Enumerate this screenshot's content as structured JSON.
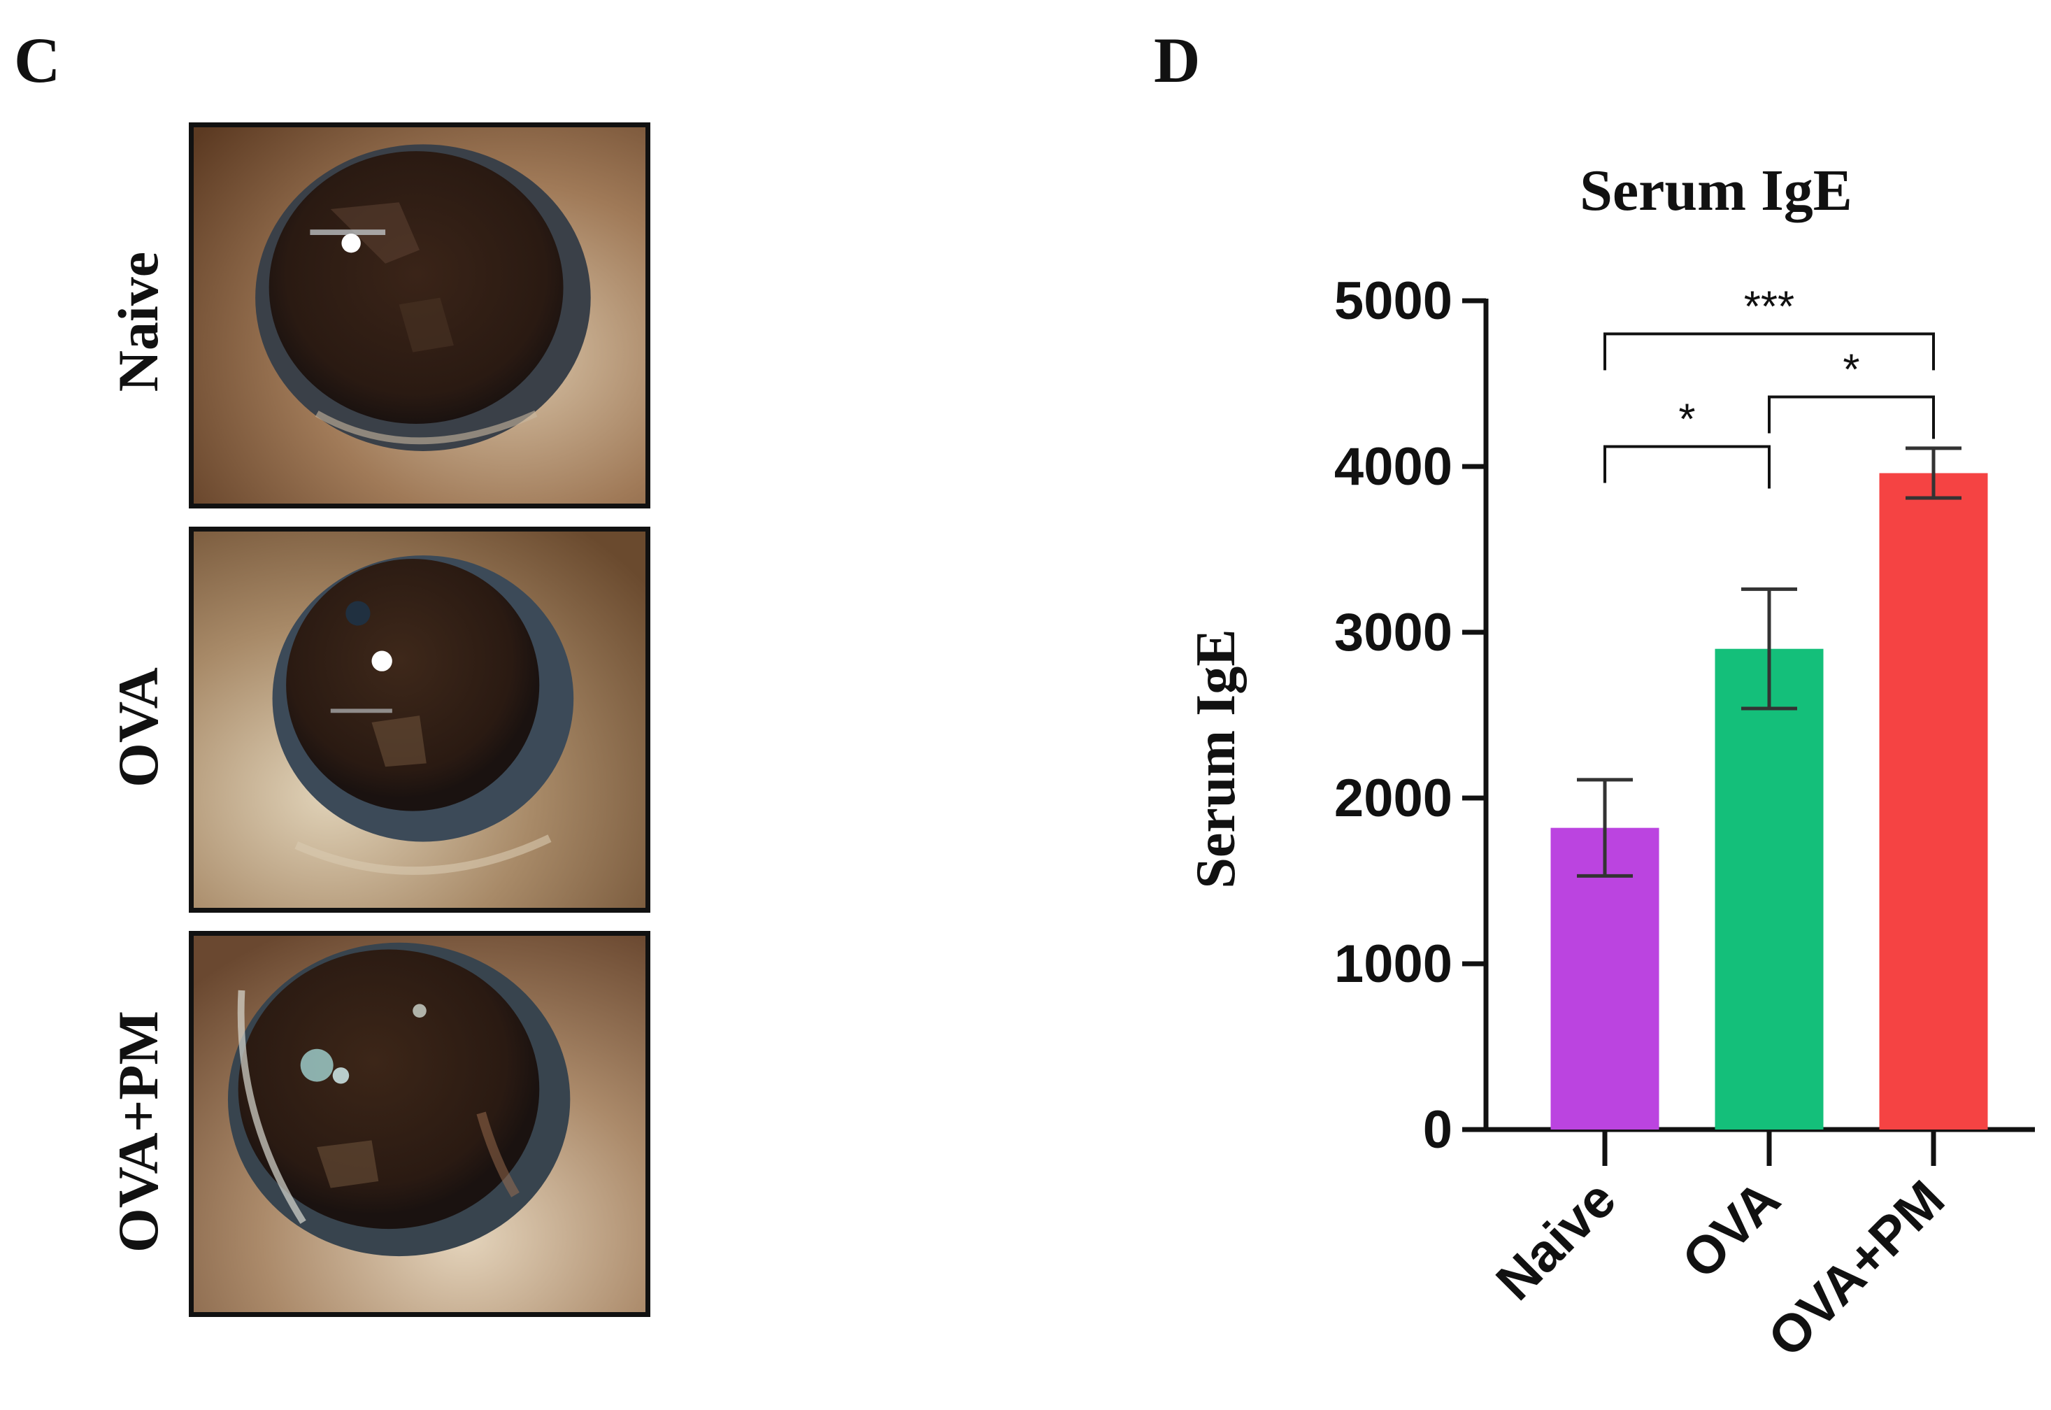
{
  "panel_c": {
    "letter": "C",
    "rows": [
      {
        "label": "Naive"
      },
      {
        "label": "OVA"
      },
      {
        "label": "OVA+PM"
      }
    ]
  },
  "panel_d": {
    "letter": "D"
  },
  "chart_data": {
    "type": "bar",
    "title": "Serum IgE",
    "ylabel": "Serum IgE",
    "xlabel": "",
    "ylim": [
      0,
      5000
    ],
    "yticks": [
      0,
      1000,
      2000,
      3000,
      4000,
      5000
    ],
    "categories": [
      "Naive",
      "OVA",
      "OVA+PM"
    ],
    "values": [
      1820,
      2900,
      3960
    ],
    "error": [
      290,
      360,
      150
    ],
    "bar_colors": [
      "#bb44e0",
      "#14bf7a",
      "#f54343"
    ],
    "significance": [
      {
        "from": "Naive",
        "to": "OVA",
        "label": "*"
      },
      {
        "from": "Naive",
        "to": "OVA+PM",
        "label": "***"
      },
      {
        "from": "OVA",
        "to": "OVA+PM",
        "label": "*"
      }
    ],
    "grid": false
  }
}
